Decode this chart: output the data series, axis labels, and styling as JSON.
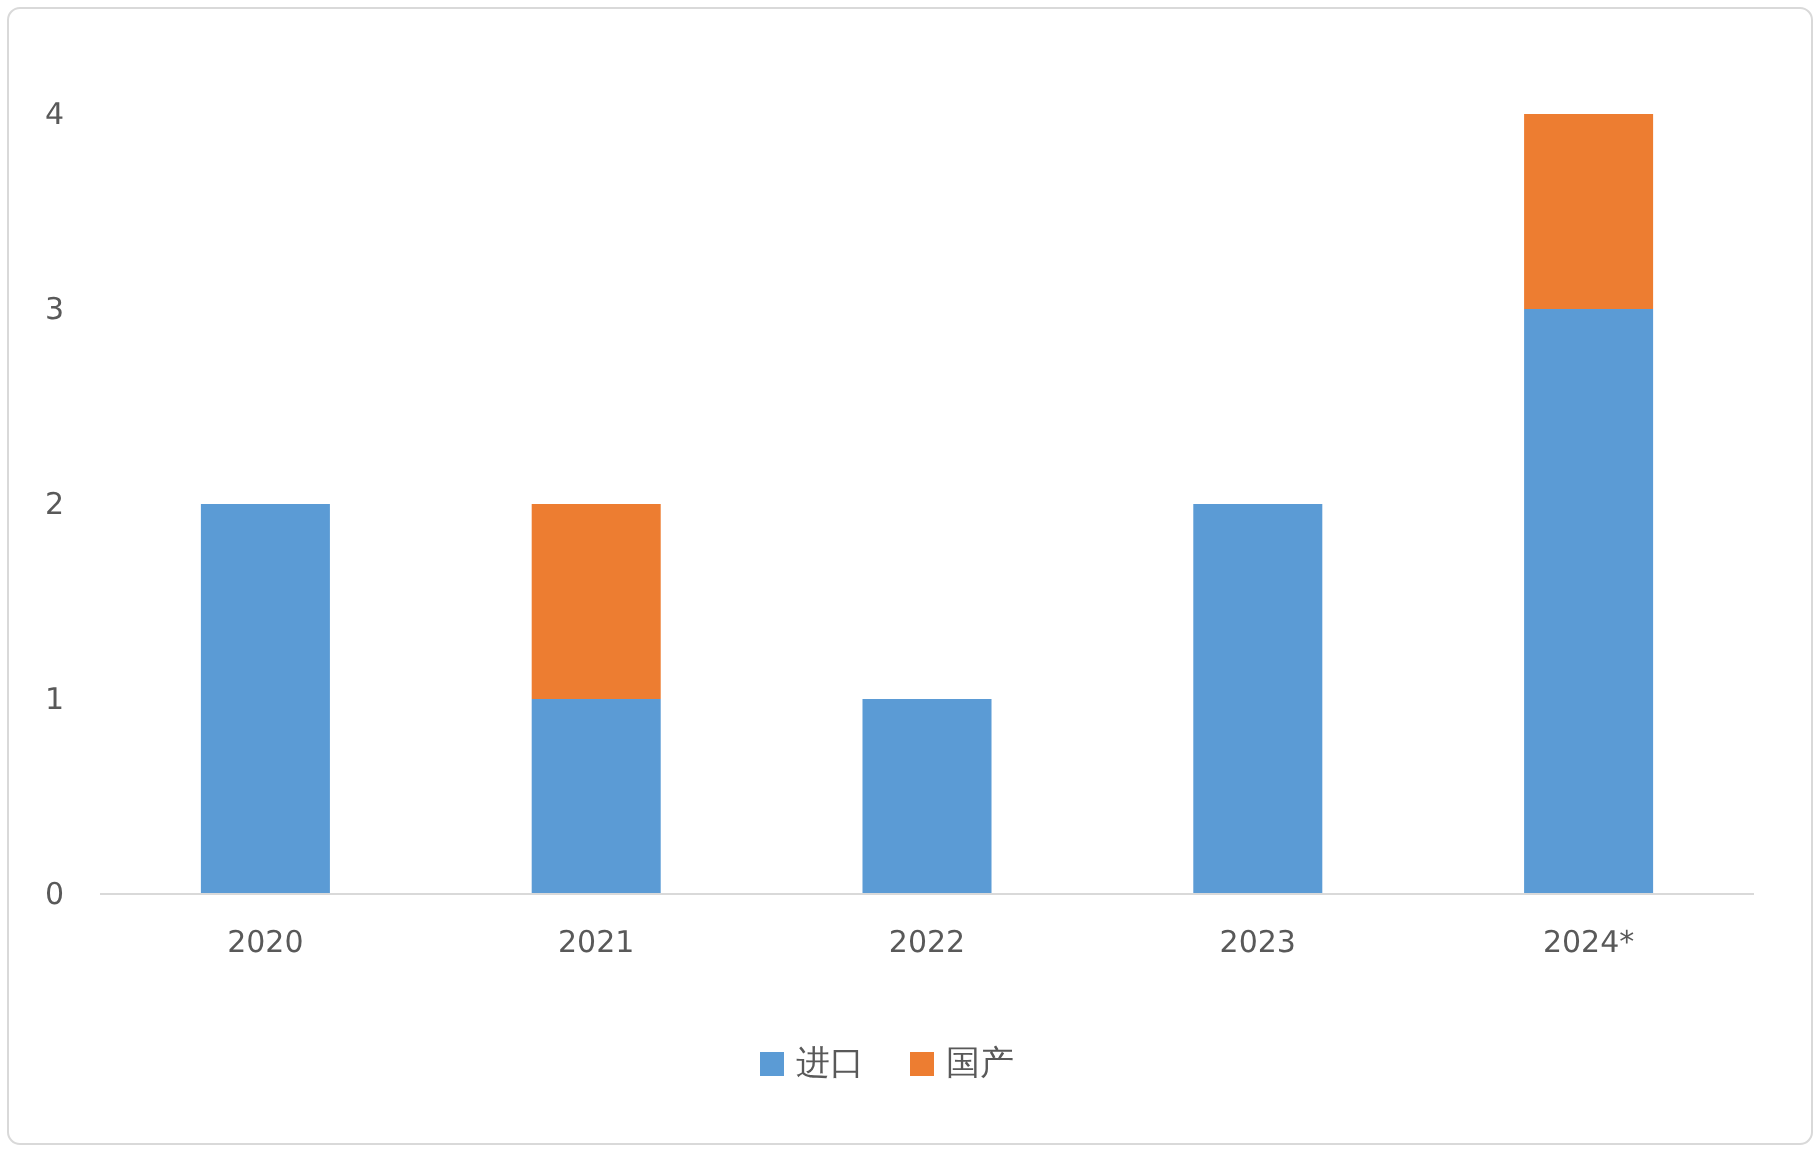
{
  "chart_data": {
    "type": "bar",
    "stacked": true,
    "categories": [
      "2020",
      "2021",
      "2022",
      "2023",
      "2024*"
    ],
    "series": [
      {
        "name": "进口",
        "color": "#5b9bd5",
        "values": [
          2,
          1,
          1,
          2,
          3
        ]
      },
      {
        "name": "国产",
        "color": "#ed7d31",
        "values": [
          null,
          1,
          null,
          null,
          1
        ]
      }
    ],
    "ylim": [
      0,
      4
    ],
    "yticks": [
      0,
      1,
      2,
      3,
      4
    ],
    "grid": false,
    "legend": "bottom"
  }
}
